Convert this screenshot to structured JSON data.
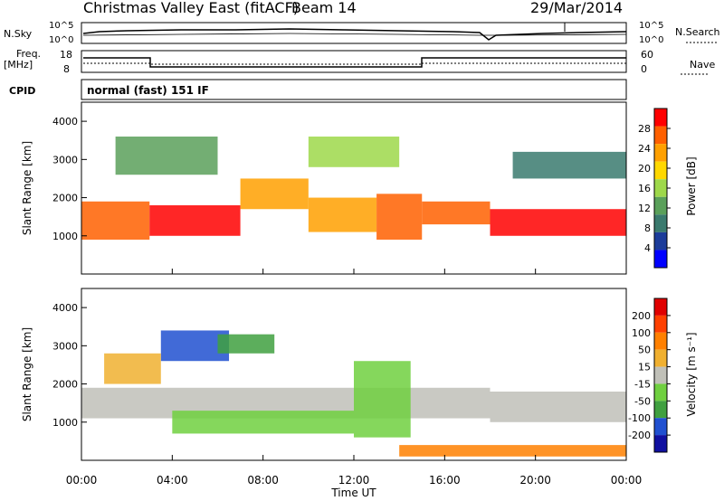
{
  "header": {
    "title": "Christmas Valley East (fitACF)",
    "beam": "Beam 14",
    "date": "29/Mar/2014"
  },
  "top_panels": {
    "sky_label": "N.Sky",
    "sky_ticks": [
      "10^5",
      "10^0"
    ],
    "search_label": "N.Search",
    "search_ticks": [
      "10^5",
      "10^0"
    ],
    "freq_label_1": "Freq.",
    "freq_label_2": "[MHz]",
    "freq_ticks": [
      "18",
      "8"
    ],
    "nave_label": "Nave",
    "nave_ticks": [
      "60",
      "0"
    ],
    "cpid_label": "CPID",
    "cpid_text": "normal (fast) 151 IF"
  },
  "colors": {
    "power_scale": [
      "#0000ff",
      "#1c3c9a",
      "#3a7a6e",
      "#5aa05a",
      "#9ed84a",
      "#ffd800",
      "#ffa000",
      "#ff6000",
      "#ff0000"
    ],
    "velocity_scale": [
      "#1010a0",
      "#2050d0",
      "#40a040",
      "#70d040",
      "#c0c0b8",
      "#f0b030",
      "#ff8000",
      "#ff4000",
      "#e00000"
    ]
  },
  "chart_data": [
    {
      "type": "heatmap",
      "name": "power",
      "ylabel": "Slant Range [km]",
      "yticks": [
        "1000",
        "2000",
        "3000",
        "4000"
      ],
      "ylim": [
        0,
        4500
      ],
      "colorbar_label": "Power [dB]",
      "colorbar_ticks": [
        "28",
        "24",
        "20",
        "16",
        "12",
        "8",
        "4"
      ],
      "bands": [
        {
          "t0": 0.0,
          "t1": 3.0,
          "r0": 900,
          "r1": 1900,
          "level": 7
        },
        {
          "t0": 3.0,
          "t1": 7.0,
          "r0": 1000,
          "r1": 1800,
          "level": 8
        },
        {
          "t0": 7.0,
          "t1": 10.0,
          "r0": 1700,
          "r1": 2500,
          "level": 6
        },
        {
          "t0": 10.0,
          "t1": 13.0,
          "r0": 1100,
          "r1": 2000,
          "level": 6
        },
        {
          "t0": 13.0,
          "t1": 15.0,
          "r0": 900,
          "r1": 2100,
          "level": 7
        },
        {
          "t0": 15.0,
          "t1": 18.0,
          "r0": 1300,
          "r1": 1900,
          "level": 7
        },
        {
          "t0": 18.0,
          "t1": 24.0,
          "r0": 1000,
          "r1": 1700,
          "level": 8
        },
        {
          "t0": 1.5,
          "t1": 6.0,
          "r0": 2600,
          "r1": 3600,
          "level": 3
        },
        {
          "t0": 10.0,
          "t1": 14.0,
          "r0": 2800,
          "r1": 3600,
          "level": 4
        },
        {
          "t0": 19.0,
          "t1": 24.0,
          "r0": 2500,
          "r1": 3200,
          "level": 2
        }
      ]
    },
    {
      "type": "heatmap",
      "name": "velocity",
      "ylabel": "Slant Range [km]",
      "yticks": [
        "1000",
        "2000",
        "3000",
        "4000"
      ],
      "ylim": [
        0,
        4500
      ],
      "xlabel": "Time UT",
      "xticks": [
        "00:00",
        "04:00",
        "08:00",
        "12:00",
        "16:00",
        "20:00",
        "00:00"
      ],
      "xlim": [
        0,
        24
      ],
      "colorbar_label": "Velocity [m s⁻¹]",
      "colorbar_ticks": [
        "200",
        "100",
        "50",
        "15",
        "-15",
        "-50",
        "-100",
        "-200"
      ],
      "bands": [
        {
          "t0": 0.0,
          "t1": 18.0,
          "r0": 1100,
          "r1": 1900,
          "level": 4
        },
        {
          "t0": 18.0,
          "t1": 24.0,
          "r0": 1000,
          "r1": 1800,
          "level": 4
        },
        {
          "t0": 4.0,
          "t1": 12.0,
          "r0": 700,
          "r1": 1300,
          "level": 3
        },
        {
          "t0": 12.0,
          "t1": 14.5,
          "r0": 600,
          "r1": 2600,
          "level": 3
        },
        {
          "t0": 3.5,
          "t1": 6.5,
          "r0": 2600,
          "r1": 3400,
          "level": 1
        },
        {
          "t0": 6.0,
          "t1": 8.5,
          "r0": 2800,
          "r1": 3300,
          "level": 2
        },
        {
          "t0": 1.0,
          "t1": 3.5,
          "r0": 2000,
          "r1": 2800,
          "level": 5
        },
        {
          "t0": 14.0,
          "t1": 24.0,
          "r0": 100,
          "r1": 400,
          "level": 6
        }
      ]
    }
  ]
}
